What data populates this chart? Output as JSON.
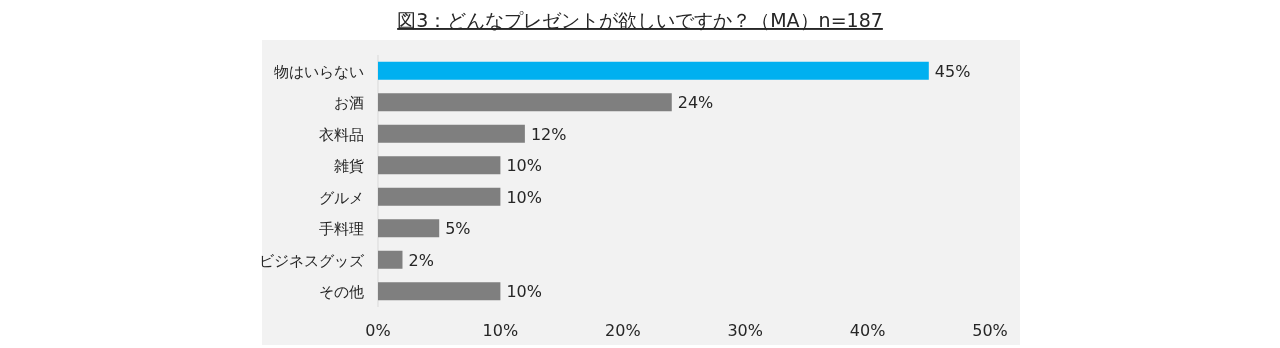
{
  "chart_data": {
    "type": "bar",
    "orientation": "horizontal",
    "title": "図3：どんなプレゼントが欲しいですか？（MA）n=187",
    "categories": [
      "物はいらない",
      "お酒",
      "衣料品",
      "雑貨",
      "グルメ",
      "手料理",
      "ビジネスグッズ",
      "その他"
    ],
    "values": [
      45,
      24,
      12,
      10,
      10,
      5,
      2,
      10
    ],
    "colors": [
      "#00b0f0",
      "#7f7f7f",
      "#7f7f7f",
      "#7f7f7f",
      "#7f7f7f",
      "#7f7f7f",
      "#7f7f7f",
      "#7f7f7f"
    ],
    "value_labels": [
      "45%",
      "24%",
      "12%",
      "10%",
      "10%",
      "5%",
      "2%",
      "10%"
    ],
    "xlim": [
      0,
      50
    ],
    "xticks": [
      {
        "value": 0,
        "label": "0%"
      },
      {
        "value": 10,
        "label": "10%"
      },
      {
        "value": 20,
        "label": "20%"
      },
      {
        "value": 30,
        "label": "30%"
      },
      {
        "value": 40,
        "label": "40%"
      },
      {
        "value": 50,
        "label": "50%"
      }
    ]
  }
}
